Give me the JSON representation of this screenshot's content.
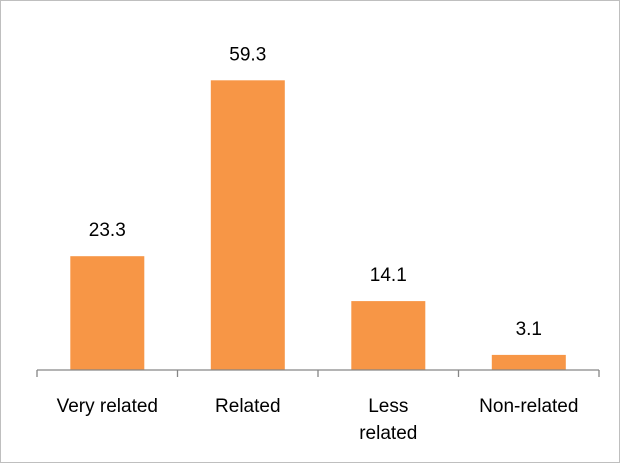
{
  "chart_data": {
    "type": "bar",
    "categories": [
      "Very related",
      "Related",
      "Less related",
      "Non-related"
    ],
    "category_lines": [
      [
        "Very related"
      ],
      [
        "Related"
      ],
      [
        "Less",
        "related"
      ],
      [
        "Non-related"
      ]
    ],
    "values": [
      23.3,
      59.3,
      14.1,
      3.1
    ],
    "data_labels": [
      "23.3",
      "59.3",
      "14.1",
      "3.1"
    ],
    "title": "",
    "xlabel": "",
    "ylabel": "",
    "ylim": [
      0,
      70
    ],
    "grid": false,
    "legend": "none",
    "bar_color": "#f79646",
    "axis_color": "#868686"
  }
}
